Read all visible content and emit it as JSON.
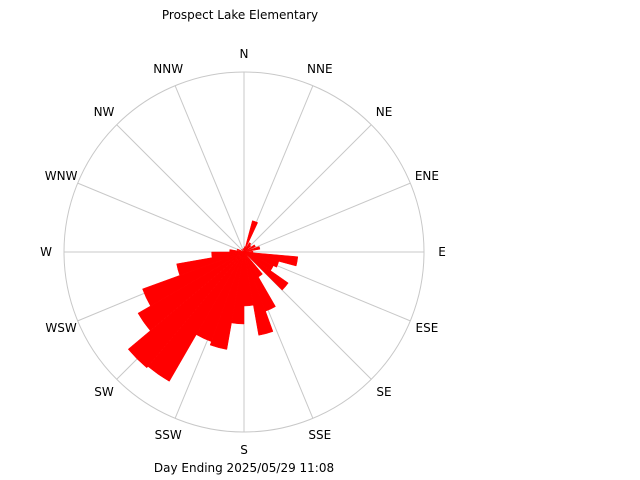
{
  "chart_data": {
    "type": "wind-rose",
    "title": "Prospect Lake Elementary",
    "footer": "Day Ending 2025/05/29 11:08",
    "directions": [
      "N",
      "NNE",
      "NE",
      "ENE",
      "E",
      "ESE",
      "SE",
      "SSE",
      "S",
      "SSW",
      "SW",
      "WSW",
      "W",
      "WNW",
      "NW",
      "NNW"
    ],
    "range_max": 1.0,
    "bar_color": "#ff0000",
    "bars": [
      {
        "angle": 10,
        "value": 0.03
      },
      {
        "angle": 20,
        "value": 0.18
      },
      {
        "angle": 35,
        "value": 0.06
      },
      {
        "angle": 45,
        "value": 0.05
      },
      {
        "angle": 60,
        "value": 0.07
      },
      {
        "angle": 75,
        "value": 0.09
      },
      {
        "angle": 90,
        "value": 0.05
      },
      {
        "angle": 100,
        "value": 0.3
      },
      {
        "angle": 110,
        "value": 0.2
      },
      {
        "angle": 120,
        "value": 0.18
      },
      {
        "angle": 130,
        "value": 0.3
      },
      {
        "angle": 145,
        "value": 0.16
      },
      {
        "angle": 155,
        "value": 0.35
      },
      {
        "angle": 165,
        "value": 0.47
      },
      {
        "angle": 175,
        "value": 0.3
      },
      {
        "angle": 185,
        "value": 0.4
      },
      {
        "angle": 195,
        "value": 0.55
      },
      {
        "angle": 205,
        "value": 0.53
      },
      {
        "angle": 215,
        "value": 0.83
      },
      {
        "angle": 225,
        "value": 0.84
      },
      {
        "angle": 235,
        "value": 0.68
      },
      {
        "angle": 245,
        "value": 0.6
      },
      {
        "angle": 255,
        "value": 0.38
      },
      {
        "angle": 265,
        "value": 0.18
      },
      {
        "angle": 275,
        "value": 0.08
      },
      {
        "angle": 290,
        "value": 0.04
      },
      {
        "angle": 320,
        "value": 0.02
      },
      {
        "angle": 350,
        "value": 0.02
      }
    ]
  }
}
